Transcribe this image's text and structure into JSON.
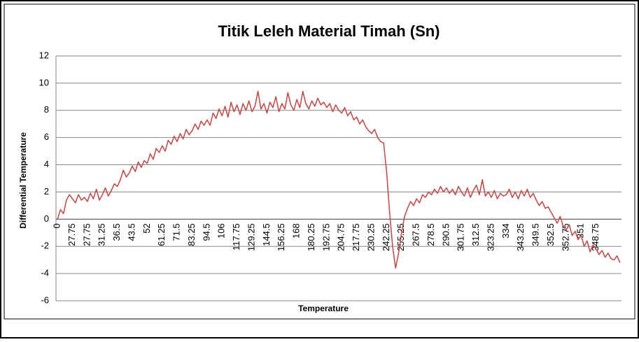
{
  "chart_data": {
    "type": "line",
    "title": "Titik Leleh Material Timah (Sn)",
    "xlabel": "Temperature",
    "ylabel": "Differential Temperature",
    "categories": [
      "0",
      null,
      null,
      null,
      null,
      "27.75",
      null,
      null,
      null,
      null,
      "27.75",
      null,
      null,
      null,
      null,
      "31.25",
      null,
      null,
      null,
      null,
      "36.5",
      null,
      null,
      null,
      null,
      "43.5",
      null,
      null,
      null,
      null,
      "52",
      null,
      null,
      null,
      null,
      "61.25",
      null,
      null,
      null,
      null,
      "71.5",
      null,
      null,
      null,
      null,
      "83.25",
      null,
      null,
      null,
      null,
      "94.5",
      null,
      null,
      null,
      null,
      "106",
      null,
      null,
      null,
      null,
      "117.75",
      null,
      null,
      null,
      null,
      "129.25",
      null,
      null,
      null,
      null,
      "144.5",
      null,
      null,
      null,
      null,
      "156.25",
      null,
      null,
      null,
      null,
      "168",
      null,
      null,
      null,
      null,
      "180.25",
      null,
      null,
      null,
      null,
      "192.75",
      null,
      null,
      null,
      null,
      "204.75",
      null,
      null,
      null,
      null,
      "217.75",
      null,
      null,
      null,
      null,
      "230.25",
      null,
      null,
      null,
      null,
      "242.25",
      null,
      null,
      null,
      null,
      "255.25",
      null,
      null,
      null,
      null,
      "267.5",
      null,
      null,
      null,
      null,
      "278.5",
      null,
      null,
      null,
      null,
      "290.5",
      null,
      null,
      null,
      null,
      "301.75",
      null,
      null,
      null,
      null,
      "312.5",
      null,
      null,
      null,
      null,
      "323.25",
      null,
      null,
      null,
      null,
      "334",
      null,
      null,
      null,
      null,
      "343.25",
      null,
      null,
      null,
      null,
      "349.5",
      null,
      null,
      null,
      null,
      "352.5",
      null,
      null,
      null,
      null,
      "352.75",
      null,
      null,
      null,
      null,
      "351",
      null,
      null,
      null,
      null,
      "348.75",
      null,
      null,
      null,
      null,
      null,
      null,
      null,
      null
    ],
    "values": [
      0,
      0.7,
      0.4,
      1.4,
      1.8,
      1.5,
      1.2,
      1.8,
      1.4,
      1.6,
      1.3,
      1.9,
      1.5,
      2.2,
      1.4,
      1.8,
      2.3,
      1.7,
      2.1,
      2.6,
      2.4,
      2.9,
      3.6,
      3.1,
      3.4,
      3.9,
      3.5,
      4.2,
      3.8,
      4.3,
      4.1,
      4.8,
      4.4,
      5.2,
      4.9,
      5.4,
      5.0,
      5.8,
      5.5,
      6.1,
      5.7,
      6.3,
      5.9,
      6.6,
      6.2,
      6.5,
      7.0,
      6.6,
      7.2,
      6.9,
      7.3,
      6.9,
      7.8,
      7.4,
      8.1,
      7.6,
      8.3,
      7.5,
      8.6,
      7.9,
      8.4,
      7.7,
      8.5,
      8.0,
      8.7,
      7.9,
      8.3,
      9.4,
      8.1,
      8.5,
      7.8,
      8.6,
      8.2,
      9.0,
      7.9,
      8.5,
      8.1,
      9.3,
      8.4,
      8.0,
      8.8,
      8.2,
      9.4,
      8.5,
      8.1,
      8.7,
      8.3,
      8.9,
      8.4,
      8.6,
      8.2,
      8.5,
      7.9,
      8.4,
      8.0,
      7.8,
      8.2,
      7.6,
      7.9,
      7.3,
      7.5,
      7.0,
      7.3,
      6.8,
      6.5,
      6.3,
      6.6,
      6.0,
      5.7,
      5.6,
      3.5,
      0.5,
      -2.0,
      -3.6,
      -2.5,
      -1.0,
      0.2,
      0.8,
      1.3,
      1.0,
      1.5,
      1.2,
      1.8,
      1.6,
      2.0,
      1.8,
      2.2,
      1.9,
      2.4,
      2.0,
      2.3,
      1.9,
      2.2,
      1.8,
      2.4,
      2.0,
      1.7,
      2.3,
      1.6,
      2.1,
      2.5,
      1.8,
      2.9,
      1.7,
      2.0,
      1.6,
      2.1,
      1.5,
      1.9,
      1.7,
      1.8,
      2.2,
      1.6,
      2.0,
      1.5,
      2.1,
      1.7,
      2.2,
      1.6,
      1.9,
      1.4,
      1.0,
      1.3,
      0.8,
      0.9,
      0.5,
      0.1,
      -0.3,
      0.2,
      -0.5,
      -0.8,
      -0.4,
      -1.2,
      -0.9,
      -1.5,
      -1.2,
      -2.0,
      -1.6,
      -2.4,
      -1.9,
      -2.2,
      -2.6,
      -2.3,
      -2.8,
      -2.5,
      -2.9,
      -3.0,
      -2.7,
      -3.2
    ],
    "color": "#c0504d",
    "ylim": [
      -6,
      12
    ],
    "yticks": [
      -6,
      -4,
      -2,
      0,
      2,
      4,
      6,
      8,
      10,
      12
    ],
    "grid": true
  }
}
